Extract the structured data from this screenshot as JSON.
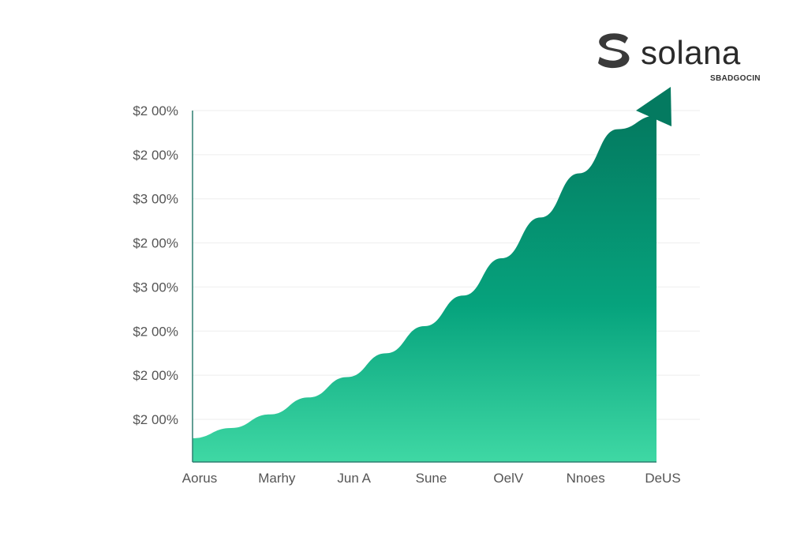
{
  "brand": {
    "name": "solana",
    "tagline": "SBADGOCIN",
    "logo_icon": "solana-s-icon"
  },
  "colors": {
    "area_top": "#047a60",
    "area_mid": "#06a37d",
    "area_bottom": "#3fd8a4",
    "axis": "#2f7f70",
    "grid": "#eeeeee",
    "label": "#555555"
  },
  "chart_data": {
    "type": "area",
    "title": "",
    "xlabel": "",
    "ylabel": "",
    "y_tick_labels": [
      "$2 00%",
      "$2 00%",
      "$3 00%",
      "$2 00%",
      "$3 00%",
      "$2 00%",
      "$2 00%",
      "$2 00%"
    ],
    "x_tick_labels": [
      "Aorus",
      "Marhy",
      "Jun A",
      "Sune",
      "OelV",
      "Nnoes",
      "DeUS"
    ],
    "x": [
      0,
      0.5,
      1,
      1.5,
      2,
      2.5,
      3,
      3.5,
      4,
      4.5,
      5,
      5.5,
      6
    ],
    "y": [
      0.07,
      0.1,
      0.14,
      0.19,
      0.25,
      0.32,
      0.4,
      0.49,
      0.6,
      0.72,
      0.85,
      0.98,
      1.02
    ],
    "ylim": [
      0,
      1.1
    ],
    "xlim": [
      0,
      6
    ],
    "grid": true,
    "trend_arrow": true,
    "legend": "none"
  }
}
